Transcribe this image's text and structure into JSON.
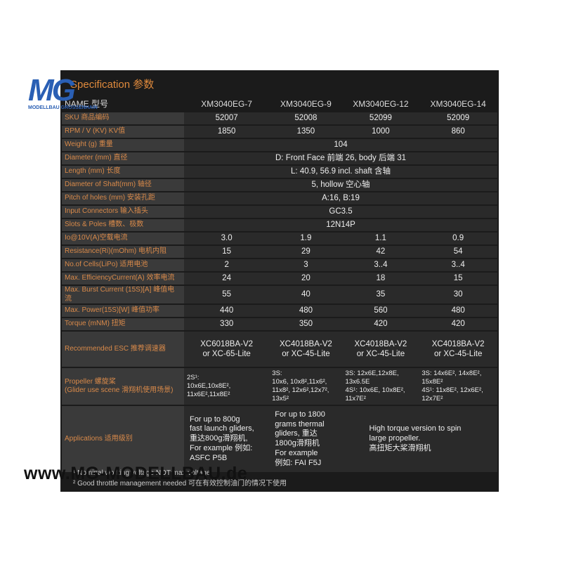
{
  "logo": {
    "mark": "MG",
    "subtitle": "MODELLBAU GROSSENHAIN"
  },
  "title": "Specification 参数",
  "table": {
    "header": [
      "NAME 型号",
      "XM3040EG-7",
      "XM3040EG-9",
      "XM3040EG-12",
      "XM3040EG-14"
    ],
    "rows": [
      {
        "label": "SKU 商品编码",
        "cells": [
          "52007",
          "52008",
          "52099",
          "52009"
        ]
      },
      {
        "label": "RPM / V (KV) KV值",
        "cells": [
          "1850",
          "1350",
          "1000",
          "860"
        ]
      },
      {
        "label": "Weight (g) 重量",
        "cells": [
          "104"
        ]
      },
      {
        "label": "Diameter (mm) 直径",
        "cells": [
          "D: Front Face 前端 26, body 后端 31"
        ]
      },
      {
        "label": "Length (mm) 长度",
        "cells": [
          "L: 40.9,  56.9 incl. shaft 含轴"
        ]
      },
      {
        "label": "Diameter of Shaft(mm) 轴径",
        "cells": [
          "5, hollow 空心轴"
        ]
      },
      {
        "label": "Pitch of holes (mm) 安装孔距",
        "cells": [
          "A:16, B:19"
        ]
      },
      {
        "label": "Input Connectors 输入插头",
        "cells": [
          "GC3.5"
        ]
      },
      {
        "label": "Slots & Poles 槽数、极数",
        "cells": [
          "12N14P"
        ]
      },
      {
        "label": "Io@10V(A)空载电流",
        "cells": [
          "3.0",
          "1.9",
          "1.1",
          "0.9"
        ]
      },
      {
        "label": "Resistance(Ri)(mOhm) 电机内阻",
        "cells": [
          "15",
          "29",
          "42",
          "54"
        ]
      },
      {
        "label": "No.of Cells(LiPo) 适用电池",
        "cells": [
          "2",
          "3",
          "3..4",
          "3..4"
        ]
      },
      {
        "label": "Max. EfficiencyCurrent(A) 效率电流",
        "cells": [
          "24",
          "20",
          "18",
          "15"
        ]
      },
      {
        "label": "Max. Burst Current (15S)[A] 峰值电流",
        "cells": [
          "55",
          "40",
          "35",
          "30"
        ]
      },
      {
        "label": "Max. Power(15S)[W] 峰值功率",
        "cells": [
          "440",
          "480",
          "560",
          "480"
        ]
      },
      {
        "label": "Torque (mNM) 扭矩",
        "cells": [
          "330",
          "350",
          "420",
          "420"
        ]
      },
      {
        "label": "Recommended ESC 推荐调速器",
        "cells": [
          "XC6018BA-V2\nor XC-65-Lite",
          "XC4018BA-V2\nor XC-45-Lite",
          "XC4018BA-V2\nor XC-45-Lite",
          "XC4018BA-V2\nor XC-45-Lite"
        ]
      },
      {
        "label": "Propeller 螺旋桨\n(Glider use scene 滑翔机使用场景)",
        "cells": [
          "2S¹:\n10x6E,10x8E²,\n11x6E²,11x8E²",
          "3S:\n10x6, 10x8²,11x6²,\n11x8², 12x6²,12x7²,\n13x5²",
          "3S: 12x6E,12x8E,\n13x6.5E\n4S¹: 10x6E, 10x8E²,\n11x7E²",
          "3S: 14x6E², 14x8E²,\n15x8E²\n4S¹: 11x8E², 12x6E²,\n12x7E²"
        ]
      },
      {
        "label": "Applications 适用级别",
        "cells": [
          "For up to 800g\nfast launch gliders,\n重达800g滑翔机,\nFor example 例如:\nASFC P5B",
          "For up to 1800\ngrams thermal\ngliders, 重达\n1800g滑翔机\nFor example\n例如: FAI F5J",
          "High torque version to spin\nlarge propeller.\n高扭矩大桨滑翔机"
        ]
      }
    ]
  },
  "footnotes": [
    "¹ Nominal working voltage NOT max voltage",
    "² Good throttle management needed 可在有效控制油门的情况下使用"
  ],
  "watermark": "www.MG-MODELLBAU.de"
}
